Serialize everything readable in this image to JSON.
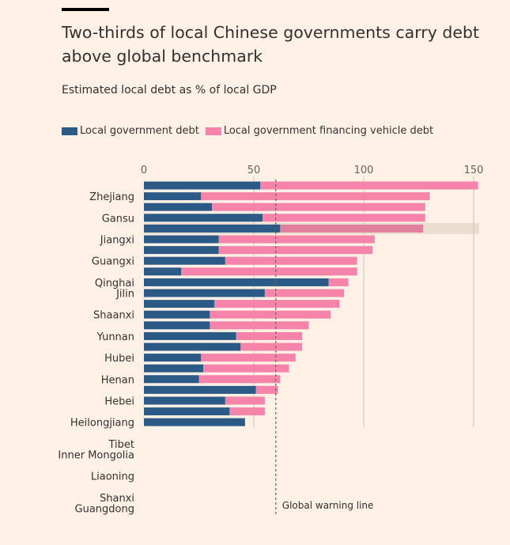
{
  "title": "Two-thirds of local Chinese governments carry debt above global benchmark",
  "subtitle": "Estimated local debt as % of local GDP",
  "legend": {
    "series_a": "Local government debt",
    "series_b": "Local government financing vehicle debt"
  },
  "colors": {
    "local_gov": "#2b5a87",
    "lgfv": "#f683aa",
    "highlight": "#e9ddd0",
    "gridline": "#cfc4b9",
    "warning_line": "#66605c"
  },
  "chart_data": {
    "type": "bar",
    "orientation": "horizontal",
    "stacked": true,
    "title": "Two-thirds of local Chinese governments carry debt above global benchmark",
    "xlabel": "Estimated local debt as % of local GDP",
    "xlim": [
      0,
      150
    ],
    "xticks": [
      0,
      50,
      100,
      150
    ],
    "highlight_row": 4,
    "annotation": {
      "label": "Global warning line",
      "value": 60
    },
    "visible_labels": [
      {
        "row": 1,
        "text": "Zhejiang"
      },
      {
        "row": 3,
        "text": "Gansu"
      },
      {
        "row": 5,
        "text": "Jiangxi"
      },
      {
        "row": 7,
        "text": "Guangxi"
      },
      {
        "row": 9,
        "text": "Qinghai"
      },
      {
        "row": 10,
        "text": "Jilin"
      },
      {
        "row": 12,
        "text": "Shaanxi"
      },
      {
        "row": 14,
        "text": "Yunnan"
      },
      {
        "row": 16,
        "text": "Hubei"
      },
      {
        "row": 18,
        "text": "Henan"
      },
      {
        "row": 20,
        "text": "Hebei"
      },
      {
        "row": 22,
        "text": "Heilongjiang"
      },
      {
        "row": 24,
        "text": "Tibet"
      },
      {
        "row": 25,
        "text": "Inner Mongolia"
      },
      {
        "row": 27,
        "text": "Liaoning"
      },
      {
        "row": 29,
        "text": "Shanxi"
      },
      {
        "row": 30,
        "text": "Guangdong"
      }
    ],
    "series": [
      {
        "name": "Local government debt",
        "values": [
          53,
          26,
          31,
          54,
          62,
          34,
          34,
          37,
          17,
          84,
          55,
          32,
          30,
          30,
          42,
          44,
          26,
          27,
          25,
          51,
          37,
          39,
          46
        ]
      },
      {
        "name": "Local government financing vehicle debt",
        "values": [
          99,
          104,
          97,
          74,
          65,
          71,
          70,
          60,
          80,
          9,
          36,
          57,
          55,
          45,
          30,
          28,
          43,
          39,
          37,
          10,
          18,
          16,
          0
        ]
      }
    ]
  }
}
